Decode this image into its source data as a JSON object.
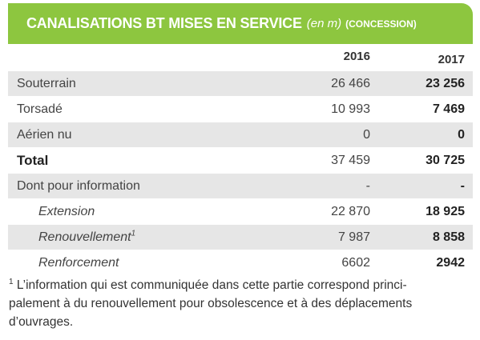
{
  "header": {
    "title": "CANALISATIONS BT MISES EN SERVICE",
    "unit": "(en m)",
    "scope": "(CONCESSION)",
    "background_color": "#8dc63f"
  },
  "columns": [
    "2016",
    "2017"
  ],
  "rows": [
    {
      "label": "Souterrain",
      "v2016": "26 466",
      "v2017": "23 256"
    },
    {
      "label": "Torsadé",
      "v2016": "10 993",
      "v2017": "7 469"
    },
    {
      "label": "Aérien nu",
      "v2016": "0",
      "v2017": "0"
    },
    {
      "label": "Total",
      "v2016": "37 459",
      "v2017": "30 725"
    },
    {
      "label": "Dont pour information",
      "v2016": "-",
      "v2017": "-"
    },
    {
      "label": "Extension",
      "v2016": "22 870",
      "v2017": "18 925"
    },
    {
      "label": "Renouvellement",
      "label_sup": "1",
      "v2016": "7 987",
      "v2017": "8 858"
    },
    {
      "label": "Renforcement",
      "v2016": "6602",
      "v2017": "2942"
    }
  ],
  "footnote": {
    "marker": "1",
    "text": " L’information qui est communiquée dans cette partie correspond princi-",
    "line2": "palement à du renouvellement pour obsolescence et à des déplacements",
    "line3": "d’ouvrages."
  }
}
